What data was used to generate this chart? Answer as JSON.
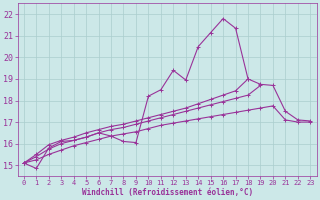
{
  "x_values": [
    0,
    1,
    2,
    3,
    4,
    5,
    6,
    7,
    8,
    9,
    10,
    11,
    12,
    13,
    14,
    15,
    16,
    17,
    18,
    19,
    20,
    21,
    22,
    23
  ],
  "line_main": [
    15.1,
    14.85,
    15.8,
    16.1,
    16.15,
    16.3,
    16.5,
    16.35,
    16.1,
    16.05,
    18.2,
    18.5,
    19.4,
    18.95,
    20.5,
    21.15,
    21.8,
    21.35,
    19.0,
    null,
    null,
    null,
    null,
    null
  ],
  "line_low": [
    15.1,
    15.25,
    15.5,
    15.7,
    15.9,
    16.05,
    16.2,
    16.35,
    16.45,
    16.55,
    16.7,
    16.85,
    16.95,
    17.05,
    17.15,
    17.25,
    17.35,
    17.45,
    17.55,
    17.65,
    17.75,
    17.1,
    17.0,
    17.0
  ],
  "line_mid": [
    15.1,
    15.4,
    15.75,
    16.0,
    16.15,
    16.3,
    16.5,
    16.65,
    16.75,
    16.9,
    17.05,
    17.2,
    17.35,
    17.5,
    17.65,
    17.8,
    17.95,
    18.1,
    18.25,
    18.7,
    null,
    null,
    null,
    null
  ],
  "line_high": [
    15.1,
    15.5,
    15.95,
    16.15,
    16.3,
    16.5,
    16.65,
    16.8,
    16.9,
    17.05,
    17.2,
    17.35,
    17.5,
    17.65,
    17.85,
    18.05,
    18.25,
    18.45,
    19.0,
    18.75,
    18.7,
    17.5,
    17.1,
    17.05
  ],
  "xlim": [
    -0.5,
    23.5
  ],
  "ylim": [
    14.5,
    22.5
  ],
  "yticks": [
    15,
    16,
    17,
    18,
    19,
    20,
    21,
    22
  ],
  "xticks": [
    0,
    1,
    2,
    3,
    4,
    5,
    6,
    7,
    8,
    9,
    10,
    11,
    12,
    13,
    14,
    15,
    16,
    17,
    18,
    19,
    20,
    21,
    22,
    23
  ],
  "xlabel": "Windchill (Refroidissement éolien,°C)",
  "color": "#993399",
  "bg_color": "#cce8e8",
  "grid_color": "#aacece",
  "marker_size": 2.5,
  "line_width": 0.8
}
